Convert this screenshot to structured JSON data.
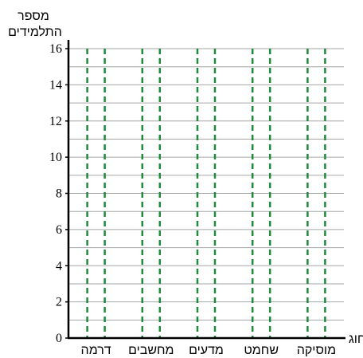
{
  "chart_data": {
    "type": "bar",
    "categories": [
      "דרמה",
      "מחשבים",
      "מדעים",
      "שחמט",
      "מוסיקה"
    ],
    "values": [
      null,
      null,
      null,
      null,
      null
    ],
    "title": "",
    "xlabel": "חוג",
    "ylabel_line1": "מספר",
    "ylabel_line2": "התלמידים",
    "ylim": [
      0,
      16
    ],
    "yticks": [
      0,
      2,
      4,
      6,
      8,
      10,
      12,
      14,
      16
    ],
    "ytick_labels": [
      "0",
      "2",
      "4",
      "6",
      "8",
      "10",
      "12",
      "14",
      "16"
    ],
    "minor_gridlines_every": 1,
    "grid": true,
    "bar_style": "dashed outline placeholders (empty, to be filled in)",
    "bar_outline_color": "#1e8a3c",
    "grid_color": "#a6a6a6",
    "axis_color": "#000000"
  }
}
